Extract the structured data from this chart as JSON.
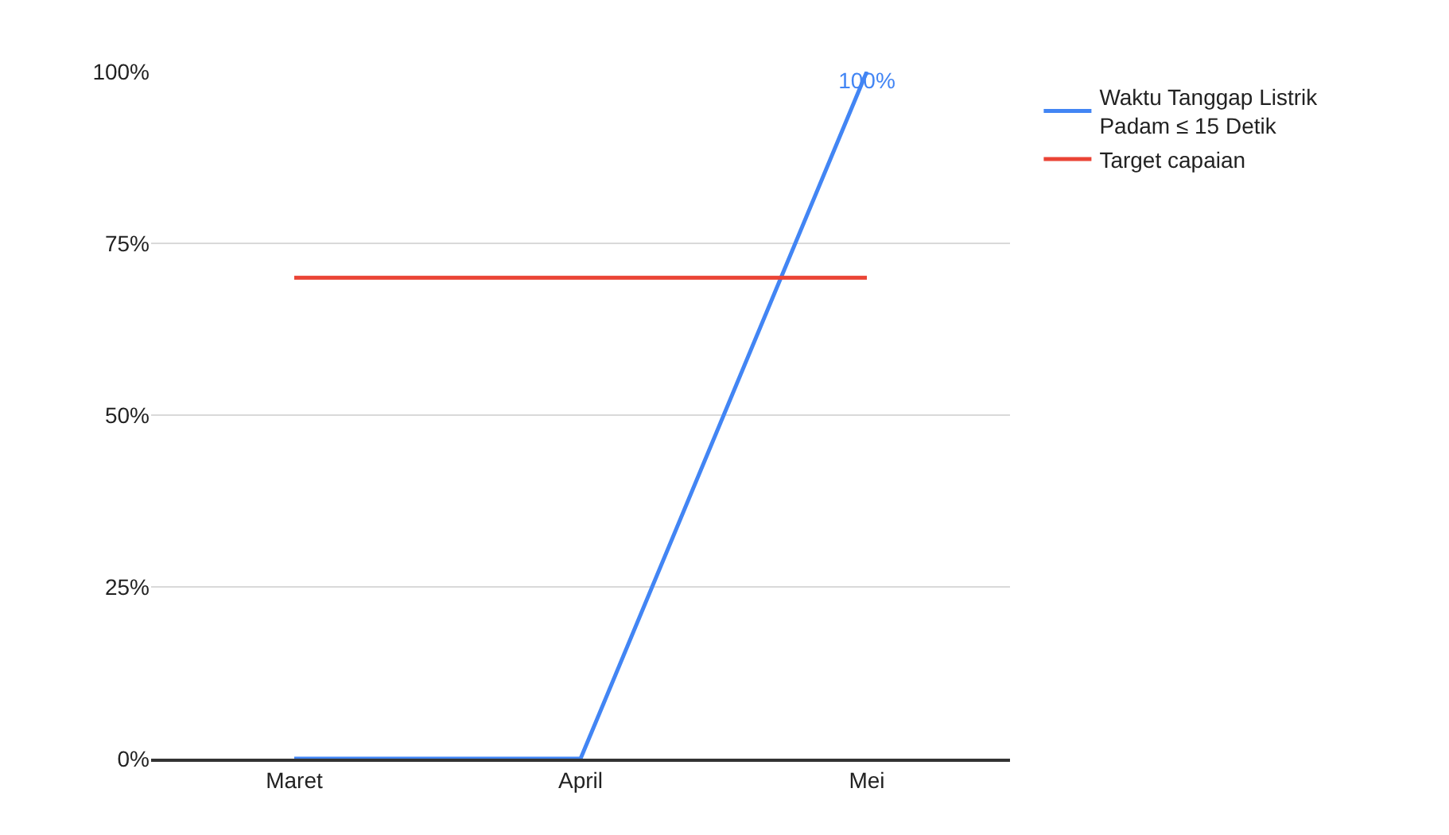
{
  "chart_data": {
    "type": "line",
    "categories": [
      "Maret",
      "April",
      "Mei"
    ],
    "series": [
      {
        "name": "Waktu Tanggap Listrik Padam ≤ 15 Detik",
        "color": "#4285f4",
        "values": [
          0,
          0,
          100
        ],
        "value_labels": [
          null,
          null,
          "100%"
        ]
      },
      {
        "name": "Target capaian",
        "color": "#ea4335",
        "values": [
          70,
          70,
          70
        ]
      }
    ],
    "ylim": [
      0,
      100
    ],
    "yticks": [
      {
        "value": 0,
        "label": "0%"
      },
      {
        "value": 25,
        "label": "25%"
      },
      {
        "value": 50,
        "label": "50%"
      },
      {
        "value": 75,
        "label": "75%"
      },
      {
        "value": 100,
        "label": "100%"
      }
    ],
    "grid": "y",
    "legend": "top right",
    "marker": "none",
    "line_style": "solid"
  }
}
